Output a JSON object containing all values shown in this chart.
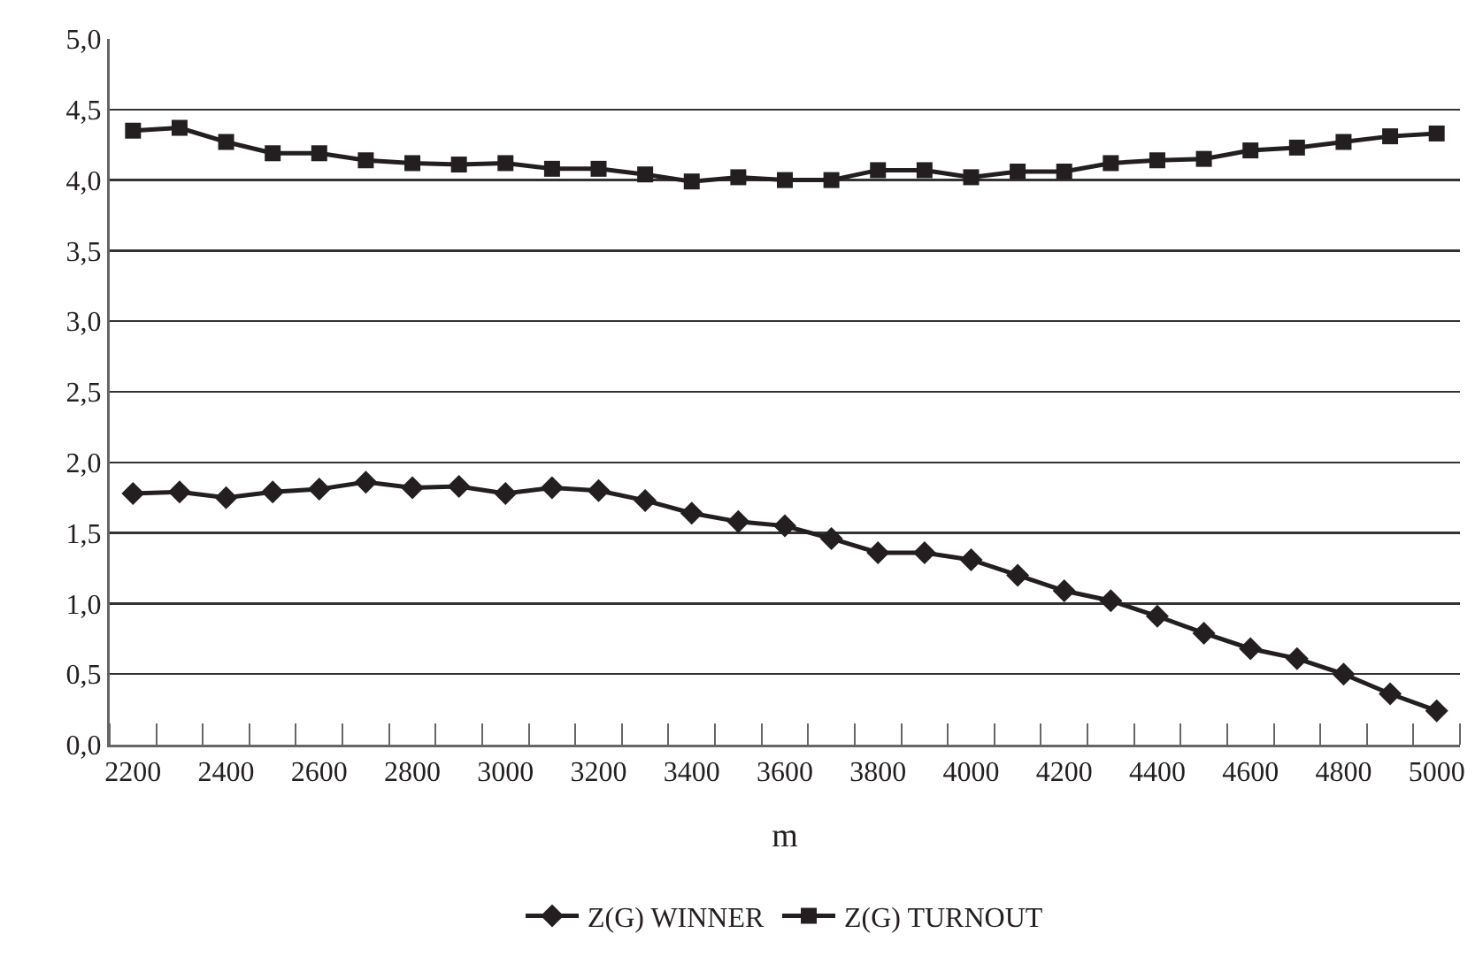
{
  "chart_data": {
    "type": "line",
    "xlabel": "m",
    "x": [
      2200,
      2300,
      2400,
      2500,
      2600,
      2700,
      2800,
      2900,
      3000,
      3100,
      3200,
      3300,
      3400,
      3500,
      3600,
      3700,
      3800,
      3900,
      4000,
      4100,
      4200,
      4300,
      4400,
      4500,
      4600,
      4700,
      4800,
      4900,
      5000
    ],
    "series": [
      {
        "name": "Z(G) WINNER",
        "color": "#231f20",
        "marker": "diamond",
        "values": [
          1.78,
          1.79,
          1.75,
          1.79,
          1.81,
          1.86,
          1.82,
          1.83,
          1.78,
          1.82,
          1.8,
          1.73,
          1.64,
          1.58,
          1.55,
          1.46,
          1.36,
          1.36,
          1.31,
          1.2,
          1.09,
          1.02,
          0.91,
          0.79,
          0.68,
          0.61,
          0.5,
          0.36,
          0.24
        ]
      },
      {
        "name": "Z(G) TURNOUT",
        "color": "#231f20",
        "marker": "square",
        "values": [
          4.35,
          4.37,
          4.27,
          4.19,
          4.19,
          4.14,
          4.12,
          4.11,
          4.12,
          4.08,
          4.08,
          4.04,
          3.99,
          4.02,
          4.0,
          4.0,
          4.07,
          4.07,
          4.02,
          4.06,
          4.06,
          4.12,
          4.14,
          4.15,
          4.21,
          4.23,
          4.27,
          4.31,
          4.33
        ]
      }
    ],
    "xlim": [
      2150,
      5050
    ],
    "xticks": [
      2200,
      2400,
      2600,
      2800,
      3000,
      3200,
      3400,
      3600,
      3800,
      4000,
      4200,
      4400,
      4600,
      4800,
      5000
    ],
    "ylim": [
      0,
      5
    ],
    "yticks": [
      {
        "value": 0,
        "label": "0,0"
      },
      {
        "value": 0.5,
        "label": "0,5"
      },
      {
        "value": 1,
        "label": "1,0"
      },
      {
        "value": 1.5,
        "label": "1,5"
      },
      {
        "value": 2,
        "label": "2,0"
      },
      {
        "value": 2.5,
        "label": "2,5"
      },
      {
        "value": 3,
        "label": "3,0"
      },
      {
        "value": 3.5,
        "label": "3,5"
      },
      {
        "value": 4,
        "label": "4,0"
      },
      {
        "value": 4.5,
        "label": "4,5"
      },
      {
        "value": 5,
        "label": "5,0"
      }
    ],
    "grid": "y",
    "legend": "bottom",
    "line_style": "solid"
  }
}
